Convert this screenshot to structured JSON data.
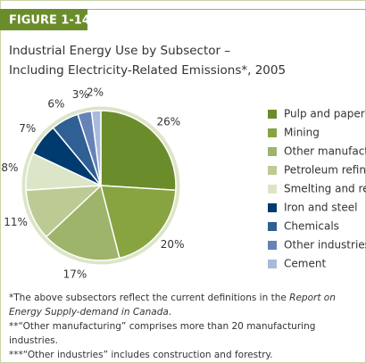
{
  "figure_label": "FIGURE 1-14",
  "chart_data": {
    "type": "pie",
    "title": "Industrial Energy Use by Subsector – Including Electricity-Related Emissions*, 2005",
    "categories": [
      "Pulp and paper",
      "Mining",
      "Other manufacturing**",
      "Petroleum refining",
      "Smelting and refining",
      "Iron and steel",
      "Chemicals",
      "Other industries***",
      "Cement"
    ],
    "values": [
      26,
      20,
      17,
      11,
      8,
      7,
      6,
      3,
      2
    ],
    "value_labels": [
      "26%",
      "20%",
      "17%",
      "11%",
      "8%",
      "7%",
      "6%",
      "3%",
      "2%"
    ],
    "colors": [
      "#6b8c2a",
      "#87a440",
      "#9eb46a",
      "#bccb93",
      "#dde5c8",
      "#003b6f",
      "#2f5f93",
      "#6683b8",
      "#a9badb"
    ],
    "legend": "right"
  },
  "notes": [
    [
      "*The above subsectors reflect the current definitions in the ",
      "Report on Energy Supply-demand in Canada",
      "."
    ],
    [
      "**“Other manufacturing” comprises more than 20 manufacturing industries."
    ],
    [
      "***“Other industries” includes construction and forestry."
    ]
  ]
}
